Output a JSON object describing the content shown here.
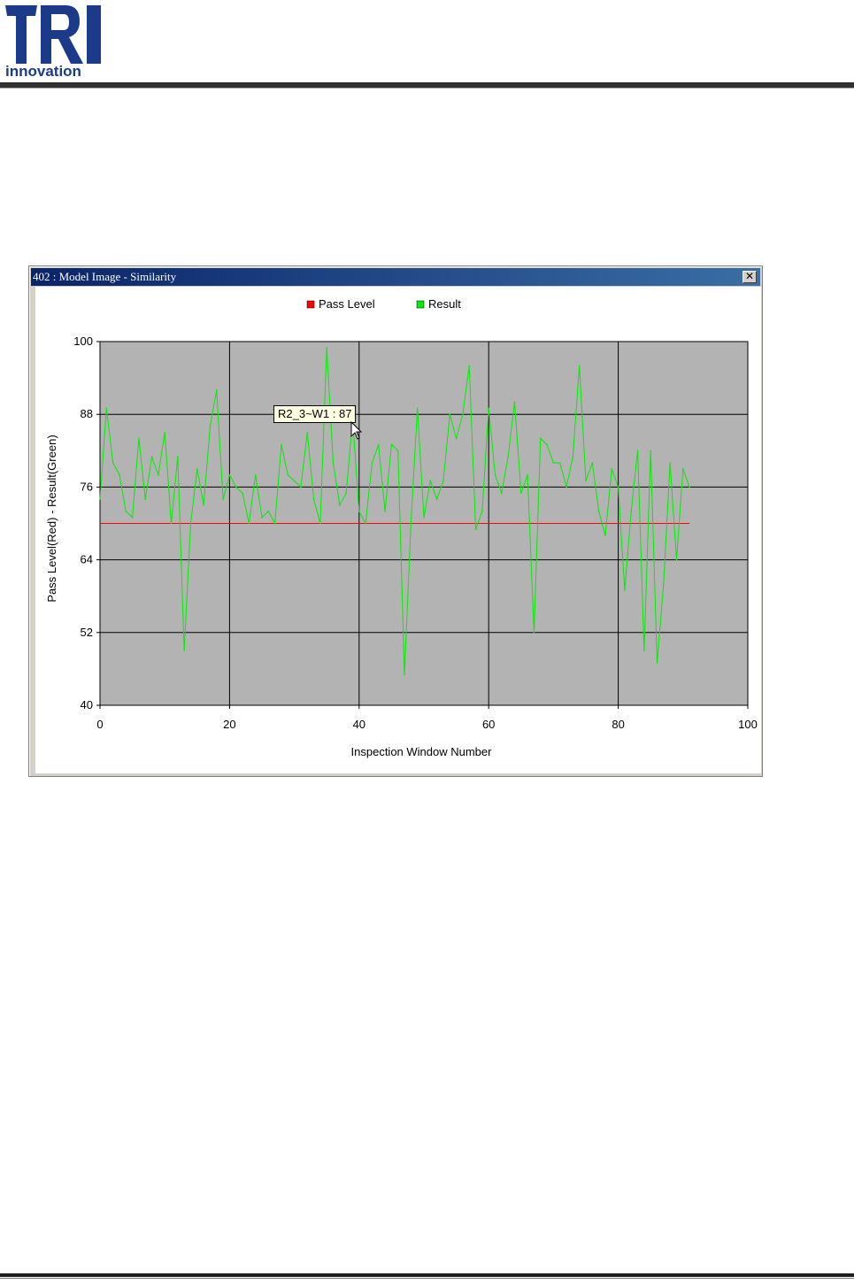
{
  "window": {
    "title": "402 : Model Image - Similarity",
    "close_icon": "close-icon"
  },
  "brand": {
    "logo_letters": "TRI",
    "logo_sub": "innovation",
    "color": "#1b3a8a"
  },
  "tooltip": {
    "text": "R2_3~W1 : 87"
  },
  "colors": {
    "plot_bg": "#b3b3b3",
    "pass": "#ff0000",
    "result": "#00ee00",
    "grid": "#000000"
  },
  "chart_data": {
    "type": "line",
    "xlabel": "Inspection Window Number",
    "ylabel": "Pass Level(Red) - Result(Green)",
    "xlim": [
      0,
      100
    ],
    "ylim": [
      40,
      100
    ],
    "xticks": [
      0,
      20,
      40,
      60,
      80,
      100
    ],
    "yticks": [
      40,
      52,
      64,
      76,
      88,
      100
    ],
    "grid": true,
    "legend_position": "top-center",
    "series": [
      {
        "name": "Pass Level",
        "color": "#ff0000",
        "x": [
          0,
          91
        ],
        "y": [
          70,
          70
        ]
      },
      {
        "name": "Result",
        "color": "#00ee00",
        "x": [
          0,
          1,
          2,
          3,
          4,
          5,
          6,
          7,
          8,
          9,
          10,
          11,
          12,
          13,
          14,
          15,
          16,
          17,
          18,
          19,
          20,
          21,
          22,
          23,
          24,
          25,
          26,
          27,
          28,
          29,
          30,
          31,
          32,
          33,
          34,
          35,
          36,
          37,
          38,
          39,
          40,
          41,
          42,
          43,
          44,
          45,
          46,
          47,
          48,
          49,
          50,
          51,
          52,
          53,
          54,
          55,
          56,
          57,
          58,
          59,
          60,
          61,
          62,
          63,
          64,
          65,
          66,
          67,
          68,
          69,
          70,
          71,
          72,
          73,
          74,
          75,
          76,
          77,
          78,
          79,
          80,
          81,
          82,
          83,
          84,
          85,
          86,
          87,
          88,
          89,
          90,
          91
        ],
        "y": [
          74,
          89,
          80,
          78,
          72,
          71,
          84,
          74,
          81,
          78,
          85,
          70,
          81,
          49,
          70,
          79,
          73,
          86,
          92,
          74,
          78,
          76,
          75,
          70,
          78,
          71,
          72,
          70,
          83,
          78,
          77,
          76,
          85,
          74,
          70,
          99,
          80,
          73,
          75,
          87,
          72,
          70,
          80,
          83,
          72,
          83,
          82,
          45,
          70,
          89,
          71,
          77,
          74,
          77,
          88,
          84,
          88,
          96,
          69,
          72,
          89,
          78,
          75,
          81,
          90,
          75,
          78,
          52,
          84,
          83,
          80,
          80,
          76,
          81,
          96,
          77,
          80,
          72,
          68,
          79,
          76,
          59,
          72,
          82,
          49,
          82,
          47,
          60,
          80,
          64,
          79,
          76
        ]
      }
    ]
  }
}
